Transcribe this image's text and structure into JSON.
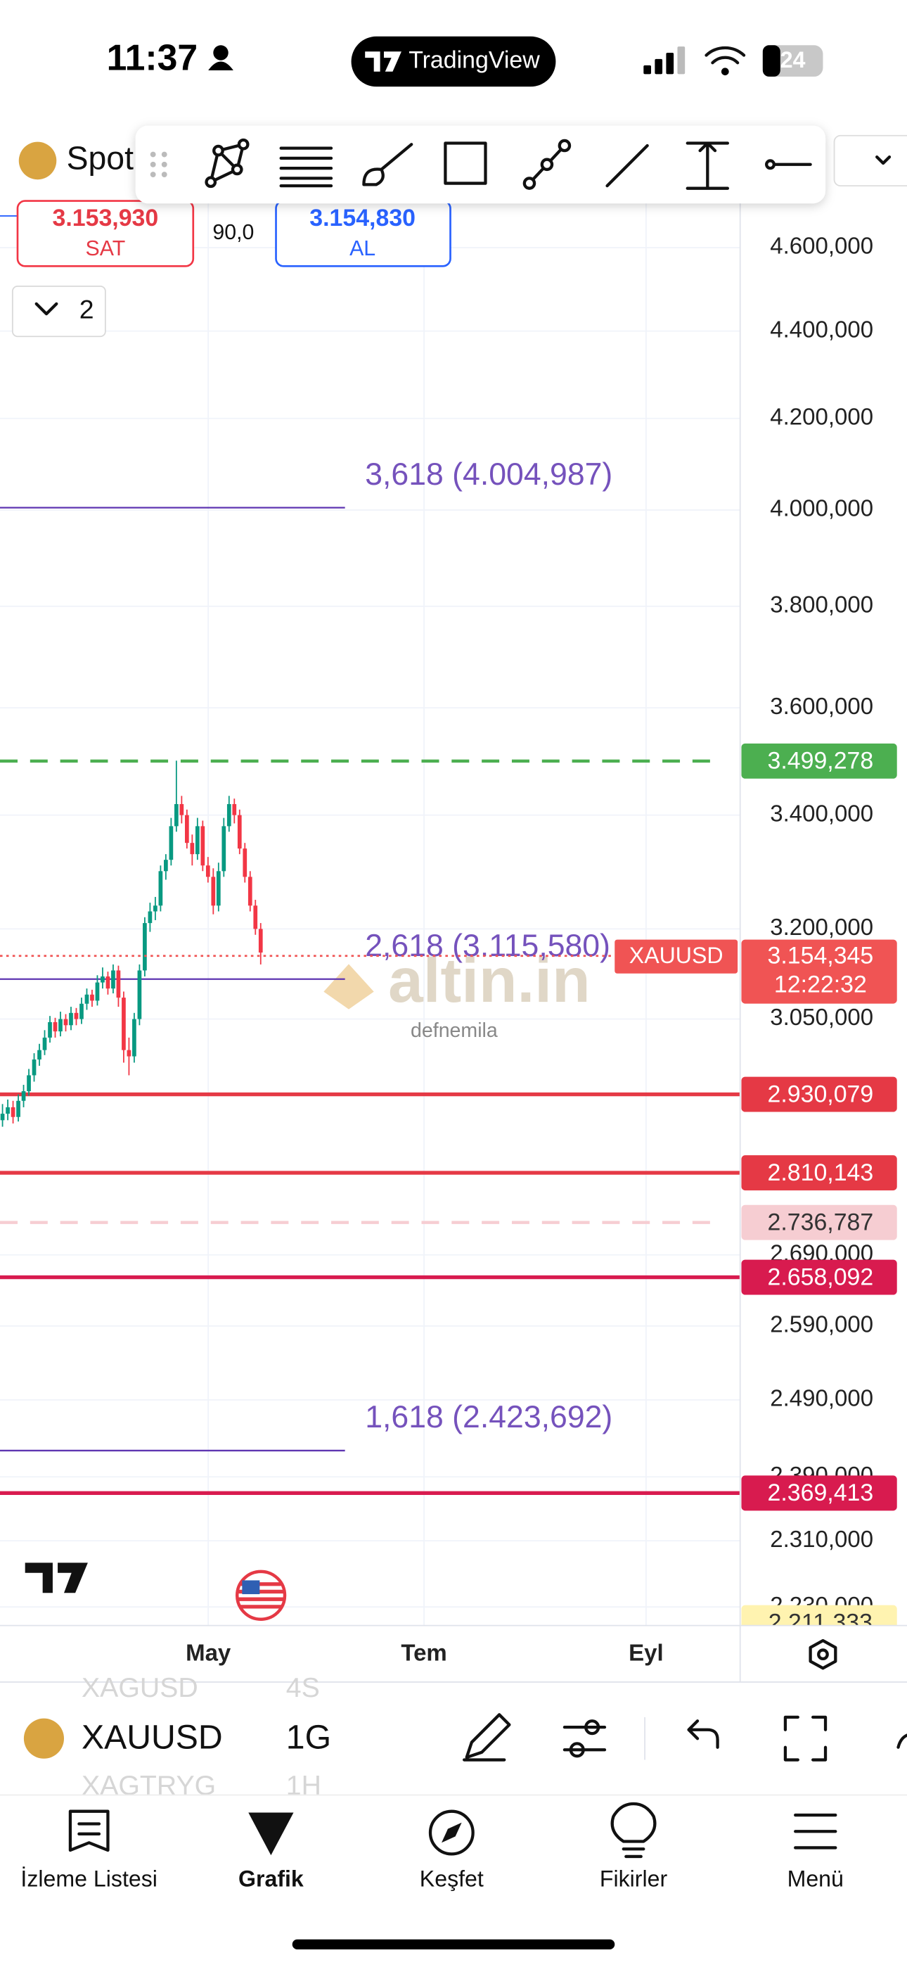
{
  "status_bar": {
    "time": "11:37",
    "app": "TradingView",
    "battery": "24"
  },
  "header": {
    "symbol": "Spot"
  },
  "quote": {
    "sell_price": "3.153,930",
    "sell_label": "SAT",
    "spread": "90,0",
    "buy_price": "3.154,830",
    "buy_label": "AL",
    "indicator_count": "2"
  },
  "chart_data": {
    "type": "candlestick",
    "x_labels": [
      "May",
      "Tem",
      "Eyl"
    ],
    "log_scale": true,
    "grid": true,
    "ylim": [
      2208,
      4909
    ],
    "yticks": [
      {
        "value": 4600,
        "label": "4.600,000"
      },
      {
        "value": 4400,
        "label": "4.400,000"
      },
      {
        "value": 4200,
        "label": "4.200,000"
      },
      {
        "value": 4000,
        "label": "4.000,000"
      },
      {
        "value": 3800,
        "label": "3.800,000"
      },
      {
        "value": 3600,
        "label": "3.600,000"
      },
      {
        "value": 3400,
        "label": "3.400,000"
      },
      {
        "value": 3200,
        "label": "3.200,000"
      },
      {
        "value": 3050,
        "label": "3.050,000"
      },
      {
        "value": 2690,
        "label": "2.690,000"
      },
      {
        "value": 2590,
        "label": "2.590,000"
      },
      {
        "value": 2490,
        "label": "2.490,000"
      },
      {
        "value": 2390,
        "label": "2.390,000"
      },
      {
        "value": 2310,
        "label": "2.310,000"
      },
      {
        "value": 2230,
        "label": "2.230,000"
      }
    ],
    "up_color": "#089981",
    "down_color": "#f23645",
    "candles": {
      "open": [
        2890,
        2900,
        2910,
        2895,
        2920,
        2935,
        2960,
        2985,
        3000,
        3020,
        3045,
        3030,
        3050,
        3040,
        3060,
        3050,
        3075,
        3090,
        3080,
        3110,
        3120,
        3100,
        3130,
        3085,
        3000,
        2990,
        3050,
        3130,
        3210,
        3230,
        3240,
        3300,
        3320,
        3380,
        3420,
        3400,
        3350,
        3330,
        3380,
        3310,
        3290,
        3240,
        3300,
        3380,
        3420,
        3400,
        3340,
        3290,
        3240,
        3200
      ],
      "high": [
        2915,
        2922,
        2920,
        2930,
        2945,
        2970,
        2995,
        3010,
        3032,
        3055,
        3052,
        3062,
        3058,
        3070,
        3068,
        3085,
        3100,
        3098,
        3122,
        3135,
        3128,
        3140,
        3138,
        3095,
        3020,
        3060,
        3140,
        3220,
        3245,
        3255,
        3310,
        3330,
        3395,
        3500,
        3435,
        3410,
        3365,
        3395,
        3390,
        3325,
        3305,
        3315,
        3395,
        3435,
        3430,
        3410,
        3350,
        3300,
        3250,
        3210
      ],
      "low": [
        2880,
        2890,
        2885,
        2888,
        2910,
        2928,
        2950,
        2975,
        2992,
        3012,
        3020,
        3022,
        3030,
        3032,
        3040,
        3042,
        3065,
        3070,
        3072,
        3100,
        3090,
        3092,
        3070,
        2980,
        2960,
        2980,
        3040,
        3120,
        3195,
        3215,
        3230,
        3285,
        3310,
        3370,
        3385,
        3340,
        3310,
        3320,
        3300,
        3280,
        3225,
        3230,
        3290,
        3370,
        3385,
        3330,
        3280,
        3230,
        3190,
        3140
      ],
      "close": [
        2900,
        2910,
        2895,
        2920,
        2935,
        2960,
        2985,
        3000,
        3020,
        3045,
        3030,
        3050,
        3040,
        3060,
        3050,
        3075,
        3090,
        3080,
        3110,
        3120,
        3100,
        3130,
        3085,
        3000,
        2990,
        3050,
        3130,
        3210,
        3230,
        3240,
        3300,
        3320,
        3380,
        3420,
        3400,
        3350,
        3330,
        3380,
        3310,
        3290,
        3240,
        3300,
        3380,
        3420,
        3400,
        3340,
        3290,
        3240,
        3200,
        3160
      ]
    },
    "fib_levels": [
      {
        "value": 4004.987,
        "label": "3,618 (4.004,987)"
      },
      {
        "value": 3115.58,
        "label": "2,618 (3.115,580)"
      },
      {
        "value": 2423.692,
        "label": "1,618 (2.423,692)"
      }
    ],
    "fib_color": "#5e35b1",
    "price_lines": [
      {
        "value": 3499.278,
        "label": "3.499,278",
        "color": "#4caf50",
        "text_color": "#ffffff",
        "style": "dashed"
      },
      {
        "value": 2930.079,
        "label": "2.930,079",
        "color": "#e53945",
        "text_color": "#ffffff",
        "style": "solid"
      },
      {
        "value": 2810.143,
        "label": "2.810,143",
        "color": "#e53945",
        "text_color": "#ffffff",
        "style": "solid"
      },
      {
        "value": 2736.787,
        "label": "2.736,787",
        "color": "#f6cdd2",
        "text_color": "#333333",
        "style": "dashed"
      },
      {
        "value": 2658.092,
        "label": "2.658,092",
        "color": "#d81b4f",
        "text_color": "#ffffff",
        "style": "solid"
      },
      {
        "value": 2369.413,
        "label": "2.369,413",
        "color": "#d81b4f",
        "text_color": "#ffffff",
        "style": "solid"
      },
      {
        "value": 2211.333,
        "label": "2.211,333",
        "color": "#fff3b0",
        "text_color": "#333333",
        "style": "none"
      }
    ],
    "last_price": {
      "value": 3154.345,
      "label": "3.154,345",
      "symbol": "XAUUSD",
      "countdown": "12:22:32",
      "color": "#f05454"
    },
    "watermark": {
      "brand": "altin.in",
      "user": "defnemila"
    }
  },
  "bottom_bar": {
    "symbol": "XAUUSD",
    "interval": "1G",
    "prev_symbol": "XAGUSD",
    "prev_interval": "4S",
    "next_symbol": "XAGTRYG",
    "next_interval": "1H"
  },
  "tab_bar": [
    "İzleme Listesi",
    "Grafik",
    "Keşfet",
    "Fikirler",
    "Menü"
  ]
}
